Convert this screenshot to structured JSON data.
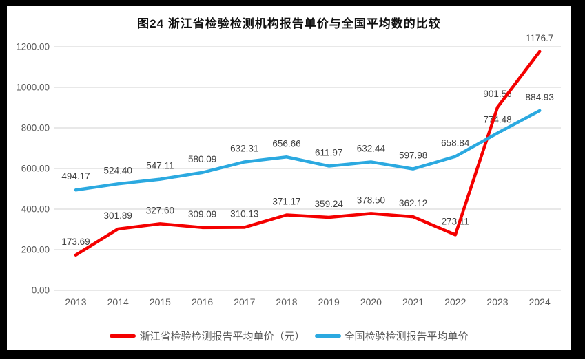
{
  "title": "图24  浙江省检验检测机构报告单价与全国平均数的比较",
  "chart_data": {
    "type": "line",
    "categories": [
      "2013",
      "2014",
      "2015",
      "2016",
      "2017",
      "2018",
      "2019",
      "2020",
      "2021",
      "2022",
      "2023",
      "2024"
    ],
    "series": [
      {
        "name": "浙江省检验检测报告平均单价（元）",
        "color": "#f40000",
        "values": [
          173.69,
          301.89,
          327.6,
          309.09,
          310.13,
          371.17,
          359.24,
          378.5,
          362.12,
          273.11,
          901.56,
          1176.7
        ],
        "labels": [
          "173.69",
          "301.89",
          "327.60",
          "309.09",
          "310.13",
          "371.17",
          "359.24",
          "378.50",
          "362.12",
          "273.11",
          "901.56",
          "1176.7"
        ]
      },
      {
        "name": "全国检验检测报告平均单价",
        "color": "#2ba9e0",
        "values": [
          494.17,
          524.4,
          547.11,
          580.09,
          632.31,
          656.66,
          611.97,
          632.44,
          597.98,
          658.84,
          774.48,
          884.93
        ],
        "labels": [
          "494.17",
          "524.40",
          "547.11",
          "580.09",
          "632.31",
          "656.66",
          "611.97",
          "632.44",
          "597.98",
          "658.84",
          "774.48",
          "884.93"
        ]
      }
    ],
    "ylim": [
      0,
      1200
    ],
    "ytick_step": 200,
    "ytick_labels": [
      "0.00",
      "200.00",
      "400.00",
      "600.00",
      "800.00",
      "1000.00",
      "1200.00"
    ],
    "grid": true,
    "legend_position": "bottom",
    "colors": {
      "gridline": "#d9d9d9",
      "axis_text": "#595959",
      "data_label_text": "#404040",
      "frame_border": "#000000",
      "canvas_background": "#ffffff"
    }
  }
}
